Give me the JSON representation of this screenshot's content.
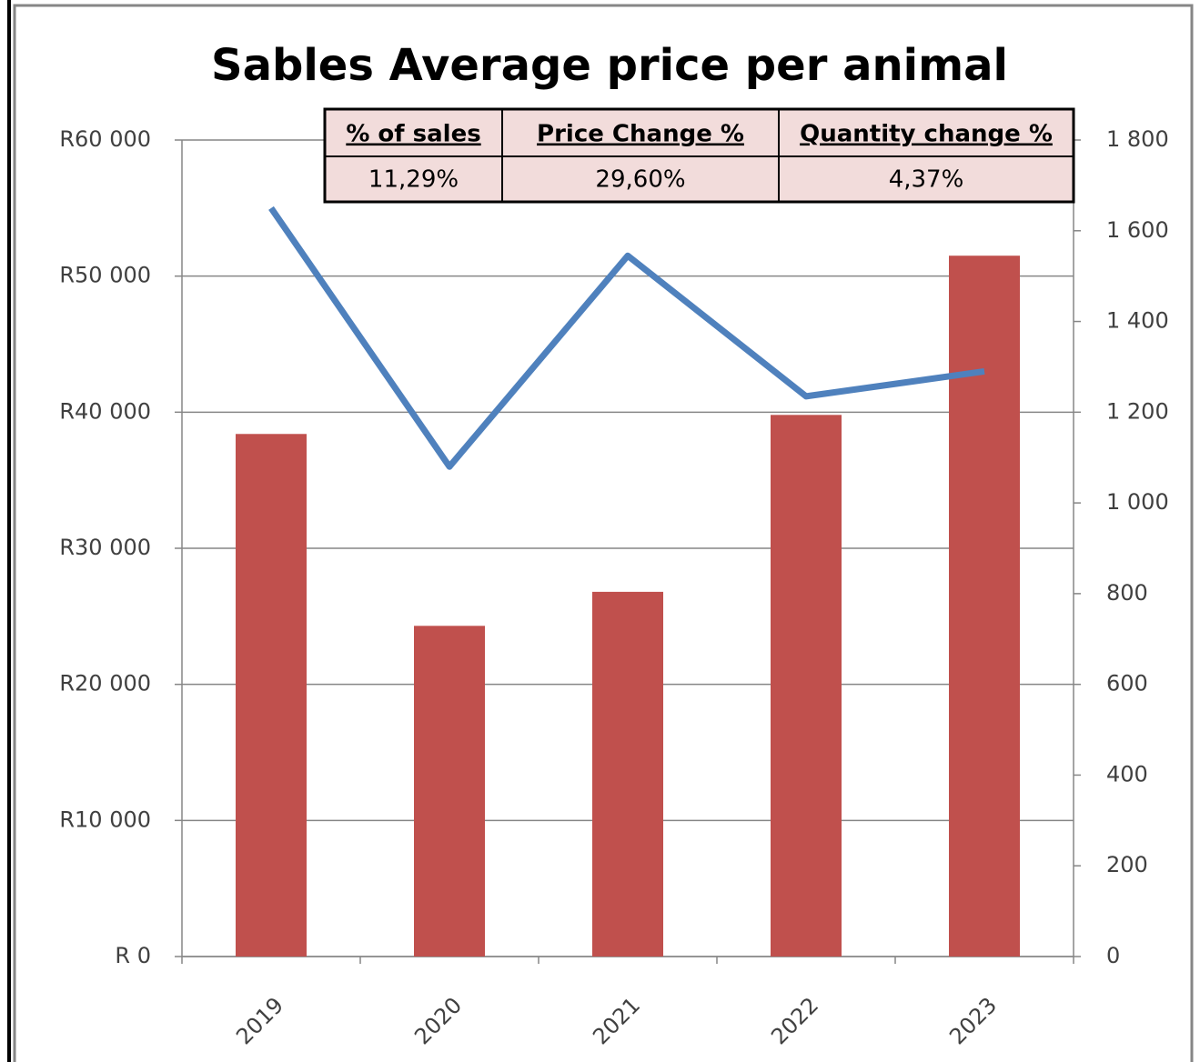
{
  "chart_data": {
    "type": "bar_line",
    "title": "Sables Average price per animal",
    "categories": [
      "2019",
      "2020",
      "2021",
      "2022",
      "2023"
    ],
    "series": [
      {
        "type": "bar",
        "color": "#c0504d",
        "values": [
          38400,
          24300,
          26800,
          39800,
          51500
        ]
      },
      {
        "type": "line",
        "axis": "y2",
        "color": "#4f81bd",
        "values": [
          1650,
          1080,
          1545,
          1235,
          1290
        ]
      }
    ],
    "ylim": [
      0,
      60000
    ],
    "yticks": [
      {
        "value": 0,
        "label": "R 0"
      },
      {
        "value": 10000,
        "label": "R10 000"
      },
      {
        "value": 20000,
        "label": "R20 000"
      },
      {
        "value": 30000,
        "label": "R30 000"
      },
      {
        "value": 40000,
        "label": "R40 000"
      },
      {
        "value": 50000,
        "label": "R50 000"
      },
      {
        "value": 60000,
        "label": "R60 000"
      }
    ],
    "y2lim": [
      0,
      1800
    ],
    "y2ticks": [
      0,
      200,
      400,
      600,
      800,
      {
        "value": 1000,
        "label": "1 000"
      },
      {
        "value": 1200,
        "label": "1 200"
      },
      {
        "value": 1400,
        "label": "1 400"
      },
      {
        "value": 1600,
        "label": "1 600"
      },
      {
        "value": 1800,
        "label": "1 800"
      }
    ],
    "grid": true,
    "table": {
      "headers": [
        "% of sales",
        "Price Change %",
        "Quantity change %"
      ],
      "values": [
        "11,29%",
        "29,60%",
        "4,37%"
      ]
    }
  }
}
